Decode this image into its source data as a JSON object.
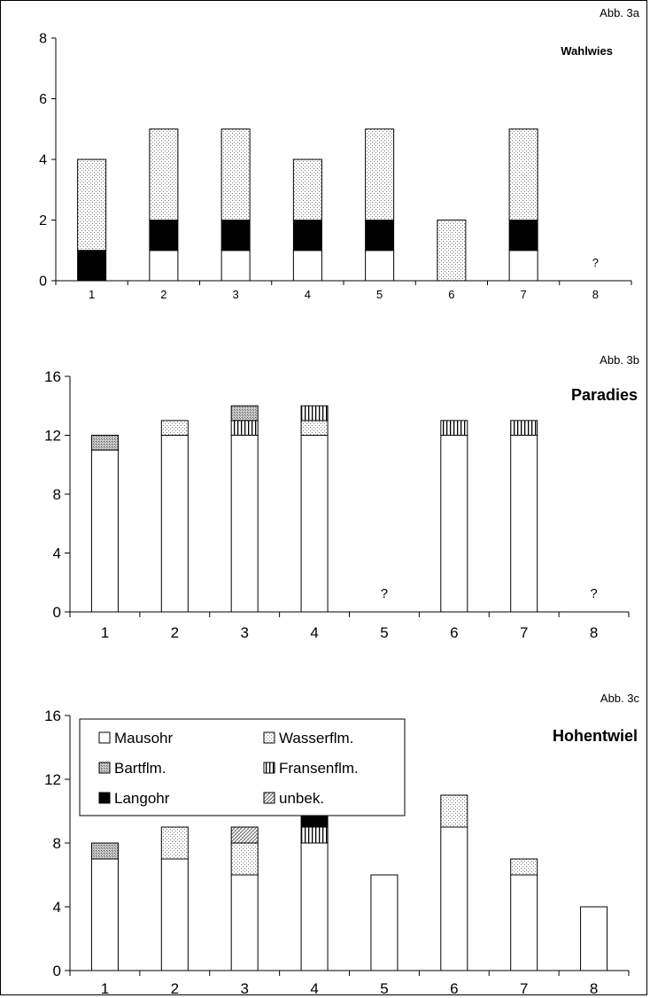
{
  "chart_data": [
    {
      "type": "bar",
      "stacked": true,
      "figure_label": "Abb. 3a",
      "title": "Wahlwies",
      "categories": [
        "1",
        "2",
        "3",
        "4",
        "5",
        "6",
        "7",
        "8"
      ],
      "ylim": [
        0,
        8
      ],
      "yticks": [
        "0",
        "2",
        "4",
        "6",
        "8"
      ],
      "series": [
        {
          "key": "mausohr",
          "values": [
            0,
            1,
            1,
            1,
            1,
            0,
            1,
            0
          ]
        },
        {
          "key": "langohr",
          "values": [
            1,
            1,
            1,
            1,
            1,
            0,
            1,
            0
          ]
        },
        {
          "key": "wasserflm",
          "values": [
            3,
            3,
            3,
            2,
            3,
            2,
            3,
            0
          ]
        }
      ],
      "annotations": [
        {
          "category": "8",
          "text": "?"
        }
      ],
      "legend": "none",
      "grid": false
    },
    {
      "type": "bar",
      "stacked": true,
      "figure_label": "Abb. 3b",
      "title": "Paradies",
      "categories": [
        "1",
        "2",
        "3",
        "4",
        "5",
        "6",
        "7",
        "8"
      ],
      "ylim": [
        0,
        16
      ],
      "yticks": [
        "0",
        "4",
        "8",
        "12",
        "16"
      ],
      "series": [
        {
          "key": "mausohr",
          "values": [
            11,
            12,
            12,
            12,
            0,
            12,
            12,
            0
          ]
        },
        {
          "key": "wasserflm",
          "values": [
            0,
            1,
            0,
            1,
            0,
            0,
            0,
            0
          ]
        },
        {
          "key": "fransenflm",
          "values": [
            0,
            0,
            1,
            1,
            0,
            1,
            1,
            0
          ]
        },
        {
          "key": "bartflm",
          "values": [
            1,
            0,
            1,
            0,
            0,
            0,
            0,
            0
          ]
        }
      ],
      "annotations": [
        {
          "category": "5",
          "text": "?"
        },
        {
          "category": "8",
          "text": "?"
        }
      ],
      "legend": "none",
      "grid": false
    },
    {
      "type": "bar",
      "stacked": true,
      "figure_label": "Abb. 3c",
      "title": "Hohentwiel",
      "categories": [
        "1",
        "2",
        "3",
        "4",
        "5",
        "6",
        "7",
        "8"
      ],
      "ylim": [
        0,
        16
      ],
      "yticks": [
        "0",
        "4",
        "8",
        "12",
        "16"
      ],
      "series": [
        {
          "key": "mausohr",
          "values": [
            7,
            7,
            6,
            8,
            6,
            9,
            6,
            4
          ]
        },
        {
          "key": "wasserflm",
          "values": [
            0,
            2,
            2,
            0,
            0,
            2,
            1,
            0
          ]
        },
        {
          "key": "fransenflm",
          "values": [
            0,
            0,
            0,
            1,
            0,
            0,
            0,
            0
          ]
        },
        {
          "key": "bartflm",
          "values": [
            1,
            0,
            0,
            0,
            0,
            0,
            0,
            0
          ]
        },
        {
          "key": "unbek",
          "values": [
            0,
            0,
            1,
            0,
            0,
            0,
            0,
            0
          ]
        },
        {
          "key": "langohr",
          "values": [
            0,
            0,
            0,
            1,
            0,
            0,
            0,
            0
          ]
        }
      ],
      "annotations": [],
      "legend": "top-left",
      "grid": false
    }
  ],
  "legend": [
    {
      "key": "mausohr",
      "label": "Mausohr"
    },
    {
      "key": "wasserflm",
      "label": "Wasserflm."
    },
    {
      "key": "bartflm",
      "label": "Bartflm."
    },
    {
      "key": "fransenflm",
      "label": "Fransenflm."
    },
    {
      "key": "langohr",
      "label": "Langohr"
    },
    {
      "key": "unbek",
      "label": "unbek."
    }
  ],
  "colors": {
    "mausohr": "#ffffff",
    "langohr": "#000000",
    "wasserflm": "#ececec",
    "bartflm": "#b5b5b5",
    "fransenflm": "#e8e8e8",
    "unbek": "#d0d0d0",
    "axis": "#000000"
  }
}
